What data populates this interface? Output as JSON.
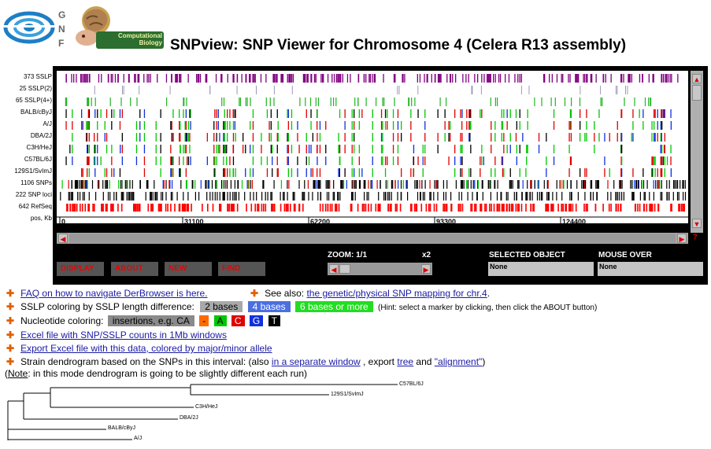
{
  "header": {
    "title": "SNPview: SNP Viewer for Chromosome 4 (Celera R13 assembly)",
    "gnf_letters": [
      "G",
      "N",
      "F"
    ],
    "cb_logo_text": "Computational Biology"
  },
  "tracks": [
    {
      "label": "373 SSLP"
    },
    {
      "label": "25 SSLP(2)"
    },
    {
      "label": "65 SSLP(4+)"
    },
    {
      "label": "BALB/cByJ"
    },
    {
      "label": "A/J"
    },
    {
      "label": "DBA/2J"
    },
    {
      "label": "C3H/HeJ"
    },
    {
      "label": "C57BL/6J"
    },
    {
      "label": "129S1/SvImJ"
    },
    {
      "label": "1106 SNPs"
    },
    {
      "label": "222 SNP loci"
    },
    {
      "label": "642 RefSeq"
    },
    {
      "label": "pos, Kb"
    }
  ],
  "axis": {
    "ticks": [
      "0",
      "31100",
      "62200",
      "93300",
      "124400"
    ]
  },
  "controls": {
    "buttons": [
      "DISPLAY",
      "ABOUT",
      "NEW",
      "FIND"
    ],
    "zoom_label": "ZOOM: 1/1",
    "zoom_max": "x2",
    "selected_label": "SELECTED OBJECT",
    "selected_value": "None",
    "mouseover_label": "MOUSE OVER",
    "mouseover_value": "None",
    "help_glyph": "?"
  },
  "links": {
    "faq": "FAQ on how to navigate DerBrowser is here.",
    "see_also_prefix": "See also:",
    "see_also_link": "the genetic/physical SNP mapping for chr.4",
    "see_also_suffix": ".",
    "sslp_prefix": "SSLP coloring by SSLP length difference:",
    "sslp_tags": [
      "2 bases",
      "4 bases",
      "6 bases or more"
    ],
    "sslp_hint": "(Hint: select a marker by clicking, then click the ABOUT button)",
    "nuc_prefix": "Nucleotide coloring:",
    "nuc_tags": [
      "insertions, e.g. CA",
      "-",
      "A",
      "C",
      "G",
      "T"
    ],
    "excel1": "Excel file with SNP/SSLP counts in 1Mb windows",
    "excel2": "Export Excel file with this data, colored by major/minor allele",
    "dendro_prefix": "Strain dendrogram based on the SNPs in this interval: (also",
    "dendro_link1": "in a separate window",
    "dendro_mid1": ", export",
    "dendro_link2": "tree",
    "dendro_mid2": "and",
    "dendro_link3": "\"alignment\"",
    "dendro_suffix": ")",
    "note_open": "(",
    "note_word": "Note",
    "note_rest": ": in this mode dendrogram is going to be slightly different each run)"
  },
  "dendrogram": {
    "leaves": [
      "C57BL/6J",
      "129S1/SvImJ",
      "C3H/HeJ",
      "DBA/2J",
      "BALB/cByJ",
      "A/J"
    ]
  },
  "colors": {
    "sslp_purple": "#800080",
    "sslp2": "#9a9ab8",
    "sslp4": "#22b522",
    "nuc_dash": "#ff6a00",
    "nuc_A": "#00c800",
    "nuc_C": "#e00000",
    "nuc_G": "#1030e0",
    "nuc_T": "#000000",
    "tag_2bases": "#a8a8a8",
    "tag_4bases": "#4a6fe0",
    "tag_6bases": "#22dd22",
    "refseq": "#ff0000"
  }
}
